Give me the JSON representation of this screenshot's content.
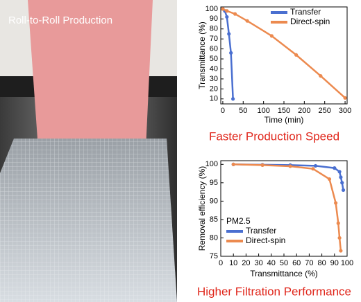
{
  "photo": {
    "label": "Roll-to-Roll Production"
  },
  "chart_data": [
    {
      "type": "line",
      "title": "Faster Production Speed",
      "xlabel": "Time (min)",
      "ylabel": "Transmittance (%)",
      "xlim": [
        -5,
        305
      ],
      "ylim": [
        5,
        102
      ],
      "xticks": [
        0,
        50,
        100,
        150,
        200,
        250,
        300
      ],
      "yticks": [
        10,
        20,
        30,
        40,
        50,
        60,
        70,
        80,
        90,
        100
      ],
      "legend_position": "upper right",
      "series": [
        {
          "name": "Transfer",
          "color": "#4a6fd0",
          "x": [
            0,
            5,
            10,
            15,
            20,
            25
          ],
          "values": [
            100,
            98,
            92,
            75,
            56,
            10
          ]
        },
        {
          "name": "Direct-spin",
          "color": "#ec8a4f",
          "x": [
            0,
            10,
            30,
            60,
            120,
            180,
            240,
            300
          ],
          "values": [
            100,
            98,
            95,
            88,
            73,
            54,
            33,
            11
          ]
        }
      ]
    },
    {
      "type": "line",
      "title": "Higher Filtration Performance",
      "xlabel": "Transmittance (%)",
      "ylabel": "Removal efficiency (%)",
      "xlim": [
        0,
        100
      ],
      "ylim": [
        75,
        101
      ],
      "xticks": [
        0,
        10,
        20,
        30,
        40,
        50,
        60,
        70,
        80,
        90,
        100
      ],
      "yticks": [
        75,
        80,
        85,
        90,
        95,
        100
      ],
      "legend_position": "lower left",
      "legend_title": "PM2.5",
      "series": [
        {
          "name": "Transfer",
          "color": "#4a6fd0",
          "x": [
            10,
            33,
            55,
            75,
            90,
            94,
            95,
            96,
            97
          ],
          "values": [
            100,
            99.9,
            99.8,
            99.6,
            99,
            98,
            96.5,
            95,
            93
          ]
        },
        {
          "name": "Direct-spin",
          "color": "#ec8a4f",
          "x": [
            10,
            33,
            55,
            73,
            86,
            91,
            93,
            94,
            95
          ],
          "values": [
            100,
            99.8,
            99.5,
            98.8,
            96,
            89.5,
            84,
            80,
            76.5
          ]
        }
      ]
    }
  ]
}
